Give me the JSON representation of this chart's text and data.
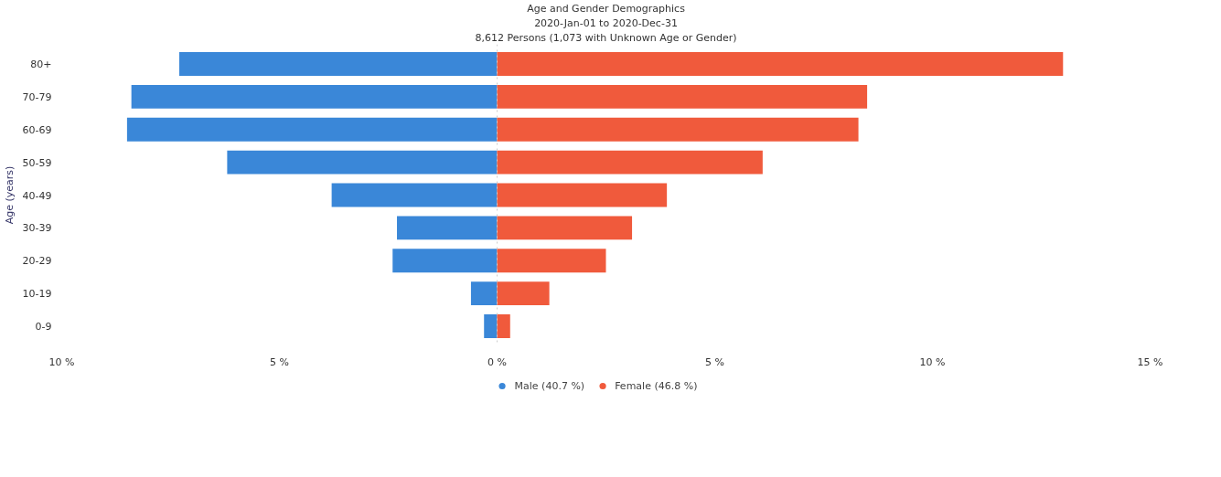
{
  "chart_data": {
    "type": "bar",
    "orientation": "horizontal",
    "title": "Age and Gender Demographics",
    "subtitle": "2020-Jan-01 to 2020-Dec-31",
    "annotations": [
      "8,612 Persons (1,073 with Unknown Age or Gender)"
    ],
    "ylabel": "Age (years)",
    "categories": [
      "80+",
      "70-79",
      "60-69",
      "50-59",
      "40-49",
      "30-39",
      "20-29",
      "10-19",
      "0-9"
    ],
    "series": [
      {
        "name": "Male (40.7 %)",
        "color": "#3a87d8",
        "values": [
          -7.3,
          -8.4,
          -8.5,
          -6.2,
          -3.8,
          -2.3,
          -2.4,
          -0.6,
          -0.3
        ]
      },
      {
        "name": "Female (46.8 %)",
        "color": "#f05a3c",
        "values": [
          13.0,
          8.5,
          8.3,
          6.1,
          3.9,
          3.1,
          2.5,
          1.2,
          0.3
        ]
      }
    ],
    "xlim": [
      -10,
      15
    ],
    "xticks": [
      {
        "value": -10,
        "label": "10 %"
      },
      {
        "value": -5,
        "label": "5 %"
      },
      {
        "value": 0,
        "label": "0 %"
      },
      {
        "value": 5,
        "label": "5 %"
      },
      {
        "value": 10,
        "label": "10 %"
      },
      {
        "value": 15,
        "label": "15 %"
      }
    ],
    "ref_lines": [
      {
        "axis": "x",
        "value": 0,
        "color": "#cccccc",
        "line_style": "dotted"
      }
    ],
    "grid": false,
    "legend": "bottom",
    "stacked": true
  }
}
